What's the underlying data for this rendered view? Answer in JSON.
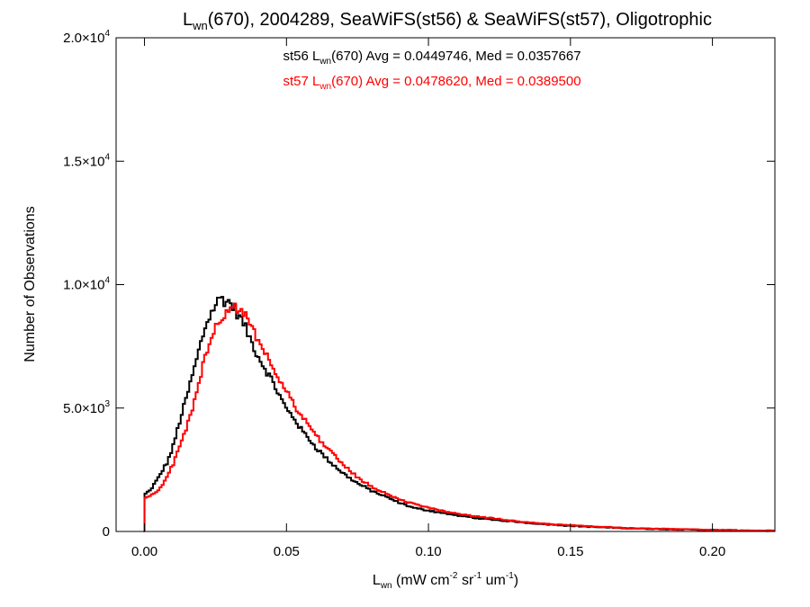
{
  "chart_data": {
    "type": "line",
    "title": {
      "sym": "L",
      "sub": "wn",
      "rest": "(670), 2004289, SeaWiFS(st56) & SeaWiFS(st57), Oligotrophic"
    },
    "xlabel": {
      "sym": "L",
      "sub": "wn",
      "p1": " (mW cm",
      "e1": "-2",
      "p2": " sr",
      "e2": "-1",
      "p3": " um",
      "e3": "-1",
      "p4": ")"
    },
    "ylabel": "Number of Observations",
    "xlim": [
      -0.01,
      0.222
    ],
    "ylim": [
      0,
      20000
    ],
    "x_ticks": [
      {
        "v": 0.0,
        "label": "0.00"
      },
      {
        "v": 0.05,
        "label": "0.05"
      },
      {
        "v": 0.1,
        "label": "0.10"
      },
      {
        "v": 0.15,
        "label": "0.15"
      },
      {
        "v": 0.2,
        "label": "0.20"
      }
    ],
    "y_ticks": [
      {
        "v": 0,
        "mant": "0",
        "exp": ""
      },
      {
        "v": 5000,
        "mant": "5.0×10",
        "exp": "3"
      },
      {
        "v": 10000,
        "mant": "1.0×10",
        "exp": "4"
      },
      {
        "v": 15000,
        "mant": "1.5×10",
        "exp": "4"
      },
      {
        "v": 20000,
        "mant": "2.0×10",
        "exp": "4"
      }
    ],
    "annotations": [
      {
        "pre": "st56 ",
        "sym": "L",
        "sub": "wn",
        "post": "(670) Avg = 0.0449746, Med = 0.0357667",
        "color": "#000000"
      },
      {
        "pre": "st57 ",
        "sym": "L",
        "sub": "wn",
        "post": "(670) Avg = 0.0478620, Med = 0.0389500",
        "color": "#ff0000"
      }
    ],
    "series": [
      {
        "color": "#000000",
        "x": [
          0.0,
          0.002,
          0.005,
          0.008,
          0.01,
          0.012,
          0.015,
          0.018,
          0.02,
          0.022,
          0.025,
          0.027,
          0.028,
          0.03,
          0.032,
          0.035,
          0.038,
          0.04,
          0.043,
          0.045,
          0.048,
          0.05,
          0.053,
          0.055,
          0.058,
          0.06,
          0.065,
          0.07,
          0.075,
          0.08,
          0.085,
          0.09,
          0.095,
          0.1,
          0.11,
          0.12,
          0.13,
          0.14,
          0.15,
          0.16,
          0.17,
          0.18,
          0.19,
          0.2,
          0.21,
          0.222
        ],
        "values": [
          1500,
          1650,
          2200,
          2800,
          3400,
          4300,
          5500,
          6800,
          7700,
          8500,
          9200,
          9500,
          9350,
          9300,
          8950,
          8400,
          7600,
          7100,
          6500,
          6100,
          5400,
          4950,
          4550,
          4150,
          3750,
          3450,
          2850,
          2350,
          1950,
          1650,
          1400,
          1150,
          950,
          850,
          650,
          500,
          400,
          300,
          230,
          170,
          130,
          100,
          80,
          60,
          40,
          20
        ]
      },
      {
        "color": "#ff0000",
        "x": [
          0.0,
          0.002,
          0.005,
          0.008,
          0.01,
          0.012,
          0.015,
          0.018,
          0.02,
          0.022,
          0.025,
          0.028,
          0.03,
          0.032,
          0.035,
          0.038,
          0.04,
          0.043,
          0.045,
          0.048,
          0.05,
          0.053,
          0.055,
          0.058,
          0.06,
          0.065,
          0.07,
          0.075,
          0.08,
          0.085,
          0.09,
          0.095,
          0.1,
          0.11,
          0.12,
          0.13,
          0.14,
          0.15,
          0.16,
          0.17,
          0.18,
          0.19,
          0.2,
          0.21,
          0.222
        ],
        "values": [
          1300,
          1450,
          1700,
          2200,
          2700,
          3300,
          4300,
          5400,
          6400,
          7400,
          8300,
          8800,
          9050,
          9100,
          8800,
          8200,
          7800,
          7200,
          6700,
          6050,
          5650,
          5100,
          4700,
          4300,
          3950,
          3300,
          2700,
          2200,
          1800,
          1550,
          1300,
          1100,
          950,
          720,
          560,
          430,
          320,
          250,
          190,
          140,
          110,
          85,
          65,
          45,
          25
        ]
      }
    ]
  }
}
